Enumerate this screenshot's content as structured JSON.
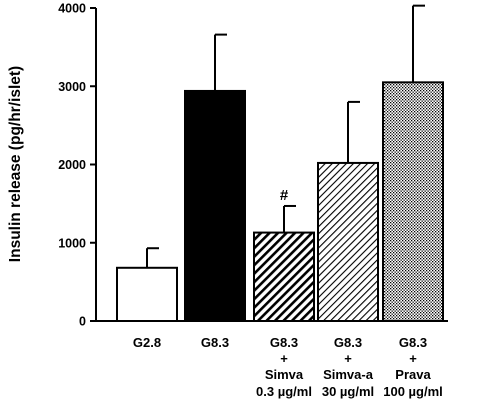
{
  "chart_data": {
    "type": "bar",
    "title": "",
    "xlabel": "",
    "ylabel": "Insulin release  (pg/hr/islet)",
    "ylim": [
      0,
      4000
    ],
    "yticks": [
      0,
      1000,
      2000,
      3000,
      4000
    ],
    "ytick_labels": [
      "0",
      "1000",
      "2000",
      "3000",
      "4000"
    ],
    "grid": false,
    "legend": "none",
    "categories": [
      [
        "G2.8"
      ],
      [
        "G8.3"
      ],
      [
        "G8.3",
        "+",
        "Simva",
        "0.3 µg/ml"
      ],
      [
        "G8.3",
        "+",
        "Simva-a",
        "30 µg/ml"
      ],
      [
        "G8.3",
        "+",
        "Prava",
        "100 µg/ml"
      ]
    ],
    "values": [
      680,
      2940,
      1130,
      2020,
      3050
    ],
    "error_upper": [
      930,
      3660,
      1470,
      2800,
      4030
    ],
    "fills": [
      "white",
      "black",
      "dense-diagonal-hatch",
      "sparse-diagonal-hatch",
      "dot-stipple"
    ],
    "annotations": [
      {
        "category_index": 2,
        "text": "#"
      }
    ]
  }
}
